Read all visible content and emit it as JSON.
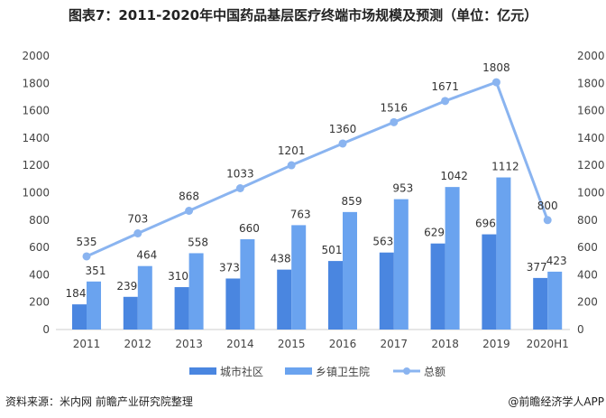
{
  "title": "图表7：2011-2020年中国药品基层医疗终端市场规模及预测（单位：亿元）",
  "source": "资料来源：米内网 前瞻产业研究院整理",
  "credit": "@前瞻经济学人APP",
  "watermark": "前瞻产业研究院",
  "chart_data": {
    "type": "bar+line",
    "categories": [
      "2011",
      "2012",
      "2013",
      "2014",
      "2015",
      "2016",
      "2017",
      "2018",
      "2019",
      "2020H1"
    ],
    "series": [
      {
        "name": "城市社区",
        "type": "bar",
        "color": "#4a86e0",
        "values": [
          184,
          239,
          310,
          373,
          438,
          501,
          563,
          629,
          696,
          377
        ]
      },
      {
        "name": "乡镇卫生院",
        "type": "bar",
        "color": "#6aa3ef",
        "values": [
          351,
          464,
          558,
          660,
          763,
          859,
          953,
          1042,
          1112,
          423
        ]
      },
      {
        "name": "总额",
        "type": "line",
        "color": "#8ab4f0",
        "values": [
          535,
          703,
          868,
          1033,
          1201,
          1360,
          1516,
          1671,
          1808,
          800
        ]
      }
    ],
    "ylim": [
      0,
      2000
    ],
    "yticks": [
      0,
      200,
      400,
      600,
      800,
      1000,
      1200,
      1400,
      1600,
      1800,
      2000
    ],
    "y2lim": [
      0,
      2000
    ],
    "legend": "bottom",
    "grid": false
  }
}
